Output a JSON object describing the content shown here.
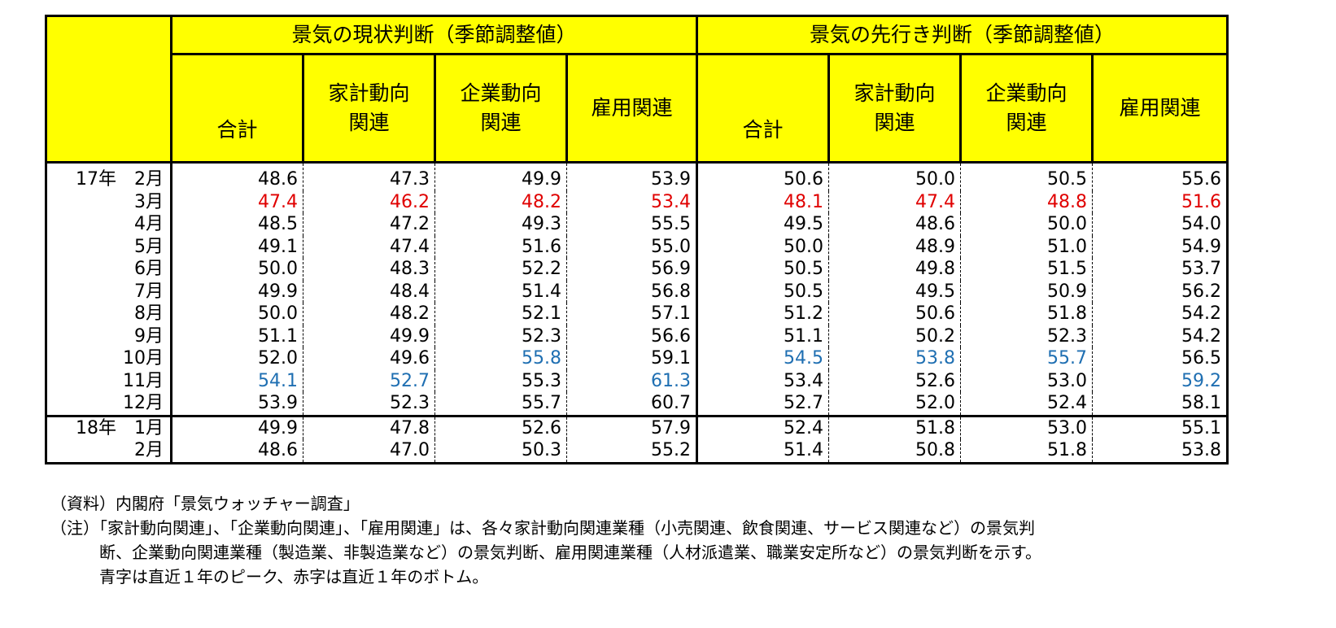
{
  "header": {
    "group_current": "景気の現状判断（季節調整値）",
    "group_outlook": "景気の先行き判断（季節調整値）",
    "cols": [
      "合計",
      "家計動向\n関連",
      "企業動向\n関連",
      "雇用関連",
      "合計",
      "家計動向\n関連",
      "企業動向\n関連",
      "雇用関連"
    ]
  },
  "rows": [
    {
      "label": "17年　2月",
      "values": [
        "48.6",
        "47.3",
        "49.9",
        "53.9",
        "50.6",
        "50.0",
        "50.5",
        "55.6"
      ]
    },
    {
      "label": "3月",
      "values": [
        "47.4",
        "46.2",
        "48.2",
        "53.4",
        "48.1",
        "47.4",
        "48.8",
        "51.6"
      ]
    },
    {
      "label": "4月",
      "values": [
        "48.5",
        "47.2",
        "49.3",
        "55.5",
        "49.5",
        "48.6",
        "50.0",
        "54.0"
      ]
    },
    {
      "label": "5月",
      "values": [
        "49.1",
        "47.4",
        "51.6",
        "55.0",
        "50.0",
        "48.9",
        "51.0",
        "54.9"
      ]
    },
    {
      "label": "6月",
      "values": [
        "50.0",
        "48.3",
        "52.2",
        "56.9",
        "50.5",
        "49.8",
        "51.5",
        "53.7"
      ]
    },
    {
      "label": "7月",
      "values": [
        "49.9",
        "48.4",
        "51.4",
        "56.8",
        "50.5",
        "49.5",
        "50.9",
        "56.2"
      ]
    },
    {
      "label": "8月",
      "values": [
        "50.0",
        "48.2",
        "52.1",
        "57.1",
        "51.2",
        "50.6",
        "51.8",
        "54.2"
      ]
    },
    {
      "label": "9月",
      "values": [
        "51.1",
        "49.9",
        "52.3",
        "56.6",
        "51.1",
        "50.2",
        "52.3",
        "54.2"
      ]
    },
    {
      "label": "10月",
      "values": [
        "52.0",
        "49.6",
        "55.8",
        "59.1",
        "54.5",
        "53.8",
        "55.7",
        "56.5"
      ]
    },
    {
      "label": "11月",
      "values": [
        "54.1",
        "52.7",
        "55.3",
        "61.3",
        "53.4",
        "52.6",
        "53.0",
        "59.2"
      ]
    },
    {
      "label": "12月",
      "values": [
        "53.9",
        "52.3",
        "55.7",
        "60.7",
        "52.7",
        "52.0",
        "52.4",
        "58.1"
      ]
    },
    {
      "label": "18年　1月",
      "values": [
        "49.9",
        "47.8",
        "52.6",
        "57.9",
        "52.4",
        "51.8",
        "53.0",
        "55.1"
      ]
    },
    {
      "label": "2月",
      "values": [
        "48.6",
        "47.0",
        "50.3",
        "55.2",
        "51.4",
        "50.8",
        "51.8",
        "53.8"
      ]
    }
  ],
  "highlight": {
    "red": [
      [
        1,
        0
      ],
      [
        1,
        1
      ],
      [
        1,
        2
      ],
      [
        1,
        3
      ],
      [
        1,
        4
      ],
      [
        1,
        5
      ],
      [
        1,
        6
      ],
      [
        1,
        7
      ]
    ],
    "blue": [
      [
        9,
        0
      ],
      [
        9,
        1
      ],
      [
        8,
        2
      ],
      [
        9,
        3
      ],
      [
        8,
        4
      ],
      [
        8,
        5
      ],
      [
        8,
        6
      ],
      [
        9,
        7
      ]
    ],
    "red_color": "#e00000",
    "blue_color": "#1f6fb2",
    "header_bg": "#ffff00"
  },
  "notes": {
    "source": "（資料）内閣府「景気ウォッチャー調査」",
    "note_line1": "（注）「家計動向関連」、「企業動向関連」、「雇用関連」は、各々家計動向関連業種（小売関連、飲食関連、サービス関連など）の景気判",
    "note_line2": "断、企業動向関連業種（製造業、非製造業など）の景気判断、雇用関連業種（人材派遣業、職業安定所など）の景気判断を示す。",
    "note_line3": "青字は直近１年のピーク、赤字は直近１年のボトム。"
  }
}
